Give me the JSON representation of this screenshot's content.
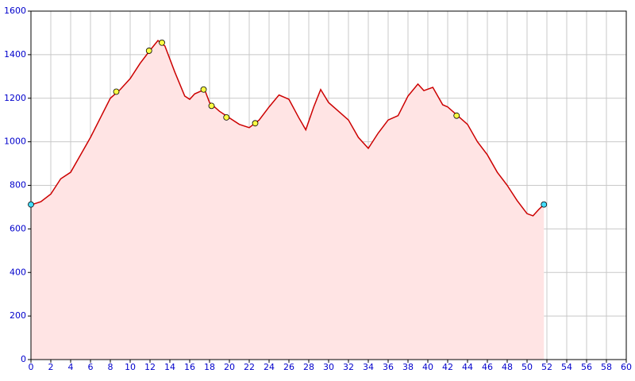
{
  "chart_data": {
    "type": "area",
    "x": [
      0,
      1,
      2,
      3,
      4,
      5,
      6,
      7,
      8,
      9,
      10,
      11,
      12,
      12.8,
      13.5,
      14.5,
      15.5,
      16,
      16.5,
      17.5,
      18,
      19,
      20,
      21,
      22,
      23,
      24,
      25,
      26,
      27,
      27.7,
      28.5,
      29.2,
      30,
      31,
      32,
      33,
      34,
      35,
      36,
      37,
      38,
      39,
      39.6,
      40.5,
      41.5,
      42,
      43,
      44,
      45,
      46,
      47,
      48,
      49,
      50,
      50.6,
      51.2,
      51.7
    ],
    "series": [
      {
        "color": "#cc0000",
        "fill": "#ffe4e4",
        "values": [
          710,
          725,
          760,
          830,
          860,
          940,
          1020,
          1110,
          1200,
          1240,
          1290,
          1360,
          1420,
          1465,
          1440,
          1320,
          1210,
          1195,
          1220,
          1240,
          1180,
          1140,
          1110,
          1080,
          1065,
          1100,
          1160,
          1215,
          1195,
          1110,
          1055,
          1160,
          1240,
          1180,
          1140,
          1100,
          1020,
          970,
          1040,
          1100,
          1120,
          1210,
          1265,
          1235,
          1250,
          1170,
          1160,
          1120,
          1080,
          1000,
          940,
          860,
          800,
          730,
          670,
          660,
          690,
          712
        ]
      }
    ],
    "waypoints": {
      "color": "#ffff44",
      "x": [
        8.6,
        11.9,
        13.2,
        17.4,
        18.2,
        19.7,
        22.6,
        42.9
      ],
      "values": [
        1230,
        1418,
        1455,
        1240,
        1165,
        1112,
        1085,
        1120
      ]
    },
    "endpoints": {
      "color": "#44ddff",
      "x": [
        0,
        51.7
      ],
      "values": [
        712,
        712
      ]
    },
    "xlim": [
      0,
      60
    ],
    "ylim": [
      0,
      1600
    ],
    "xticks": [
      0,
      2,
      4,
      6,
      8,
      10,
      12,
      14,
      16,
      18,
      20,
      22,
      24,
      26,
      28,
      30,
      32,
      34,
      36,
      38,
      40,
      42,
      44,
      46,
      48,
      50,
      52,
      54,
      56,
      58,
      60
    ],
    "yticks": [
      0,
      200,
      400,
      600,
      800,
      1000,
      1200,
      1400,
      1600
    ],
    "grid": true
  }
}
